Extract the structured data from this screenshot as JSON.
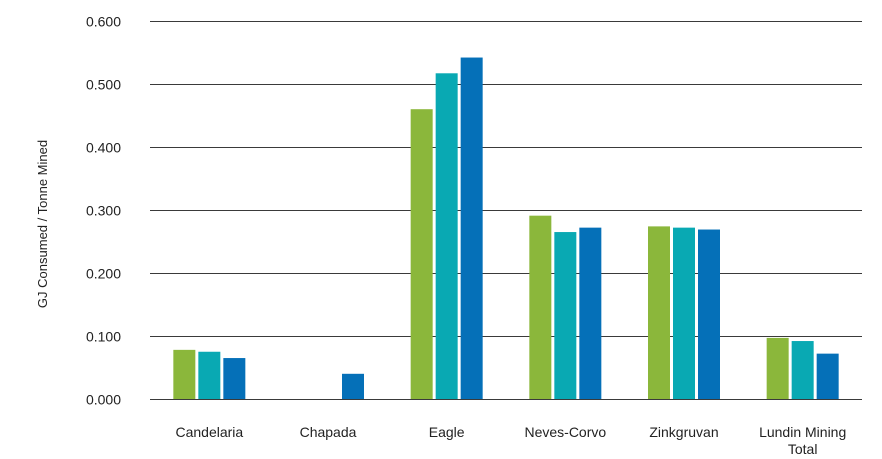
{
  "chart_data": {
    "type": "bar",
    "title": "",
    "xlabel": "",
    "ylabel": "GJ Consumed / Tonne  Mined",
    "ylim": [
      0,
      0.6
    ],
    "yticks": [
      "0.000",
      "0.100",
      "0.200",
      "0.300",
      "0.400",
      "0.500",
      "0.600"
    ],
    "grid": true,
    "legend": "none",
    "categories": [
      [
        "Candelaria"
      ],
      [
        "Chapada"
      ],
      [
        "Eagle"
      ],
      [
        "Neves-Corvo"
      ],
      [
        "Zinkgruvan"
      ],
      [
        "Lundin Mining",
        "Total"
      ]
    ],
    "series": [
      {
        "color": "#8bb73b",
        "values": [
          0.078,
          null,
          0.46,
          0.291,
          0.274,
          0.097
        ]
      },
      {
        "color": "#09a9b3",
        "values": [
          0.075,
          null,
          0.517,
          0.265,
          0.272,
          0.092
        ]
      },
      {
        "color": "#0570b8",
        "values": [
          0.065,
          0.04,
          0.542,
          0.272,
          0.269,
          0.072
        ]
      }
    ]
  }
}
